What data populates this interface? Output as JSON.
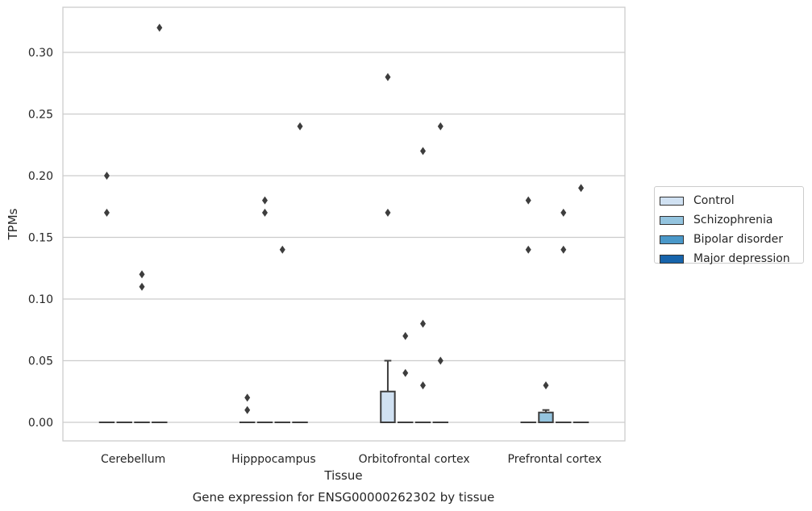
{
  "chart_data": {
    "type": "box",
    "title": "Gene expression for ENSG00000262302 by tissue",
    "xlabel": "Tissue",
    "ylabel": "TPMs",
    "ylim": [
      -0.016,
      0.337
    ],
    "yticks": [
      "0.00",
      "0.05",
      "0.10",
      "0.15",
      "0.20",
      "0.25",
      "0.30"
    ],
    "grid": true,
    "legend_position": "right",
    "categories": [
      "Cerebellum",
      "Hipppocampus",
      "Orbitofrontal cortex",
      "Prefrontal cortex"
    ],
    "series": [
      {
        "name": "Control",
        "color": "#d0e1f2"
      },
      {
        "name": "Schizophrenia",
        "color": "#94c4df"
      },
      {
        "name": "Bipolar disorder",
        "color": "#4a98c9"
      },
      {
        "name": "Major depression",
        "color": "#1764ab"
      }
    ],
    "boxes": [
      {
        "category": "Cerebellum",
        "series": "Control",
        "q1": 0,
        "median": 0,
        "q3": 0,
        "whisker_low": 0,
        "whisker_high": 0,
        "outliers": [
          0.2,
          0.17
        ]
      },
      {
        "category": "Cerebellum",
        "series": "Schizophrenia",
        "q1": 0,
        "median": 0,
        "q3": 0,
        "whisker_low": 0,
        "whisker_high": 0,
        "outliers": []
      },
      {
        "category": "Cerebellum",
        "series": "Bipolar disorder",
        "q1": 0,
        "median": 0,
        "q3": 0,
        "whisker_low": 0,
        "whisker_high": 0,
        "outliers": [
          0.12,
          0.11
        ]
      },
      {
        "category": "Cerebellum",
        "series": "Major depression",
        "q1": 0,
        "median": 0,
        "q3": 0,
        "whisker_low": 0,
        "whisker_high": 0,
        "outliers": [
          0.32
        ]
      },
      {
        "category": "Hipppocampus",
        "series": "Control",
        "q1": 0,
        "median": 0,
        "q3": 0,
        "whisker_low": 0,
        "whisker_high": 0,
        "outliers": [
          0.02,
          0.01
        ]
      },
      {
        "category": "Hipppocampus",
        "series": "Schizophrenia",
        "q1": 0,
        "median": 0,
        "q3": 0,
        "whisker_low": 0,
        "whisker_high": 0,
        "outliers": [
          0.18,
          0.17
        ]
      },
      {
        "category": "Hipppocampus",
        "series": "Bipolar disorder",
        "q1": 0,
        "median": 0,
        "q3": 0,
        "whisker_low": 0,
        "whisker_high": 0,
        "outliers": [
          0.14
        ]
      },
      {
        "category": "Hipppocampus",
        "series": "Major depression",
        "q1": 0,
        "median": 0,
        "q3": 0,
        "whisker_low": 0,
        "whisker_high": 0,
        "outliers": [
          0.24
        ]
      },
      {
        "category": "Orbitofrontal cortex",
        "series": "Control",
        "q1": 0,
        "median": 0,
        "q3": 0.025,
        "whisker_low": 0,
        "whisker_high": 0.05,
        "outliers": [
          0.28,
          0.17
        ]
      },
      {
        "category": "Orbitofrontal cortex",
        "series": "Schizophrenia",
        "q1": 0,
        "median": 0,
        "q3": 0,
        "whisker_low": 0,
        "whisker_high": 0,
        "outliers": [
          0.07,
          0.04
        ]
      },
      {
        "category": "Orbitofrontal cortex",
        "series": "Bipolar disorder",
        "q1": 0,
        "median": 0,
        "q3": 0,
        "whisker_low": 0,
        "whisker_high": 0,
        "outliers": [
          0.22,
          0.08,
          0.03
        ]
      },
      {
        "category": "Orbitofrontal cortex",
        "series": "Major depression",
        "q1": 0,
        "median": 0,
        "q3": 0,
        "whisker_low": 0,
        "whisker_high": 0,
        "outliers": [
          0.24,
          0.05
        ]
      },
      {
        "category": "Prefrontal cortex",
        "series": "Control",
        "q1": 0,
        "median": 0,
        "q3": 0,
        "whisker_low": 0,
        "whisker_high": 0,
        "outliers": [
          0.18,
          0.14
        ]
      },
      {
        "category": "Prefrontal cortex",
        "series": "Schizophrenia",
        "q1": 0,
        "median": 0,
        "q3": 0.008,
        "whisker_low": 0,
        "whisker_high": 0.01,
        "outliers": [
          0.03
        ]
      },
      {
        "category": "Prefrontal cortex",
        "series": "Bipolar disorder",
        "q1": 0,
        "median": 0,
        "q3": 0,
        "whisker_low": 0,
        "whisker_high": 0,
        "outliers": [
          0.17,
          0.14
        ]
      },
      {
        "category": "Prefrontal cortex",
        "series": "Major depression",
        "q1": 0,
        "median": 0,
        "q3": 0,
        "whisker_low": 0,
        "whisker_high": 0,
        "outliers": [
          0.19
        ]
      }
    ]
  }
}
